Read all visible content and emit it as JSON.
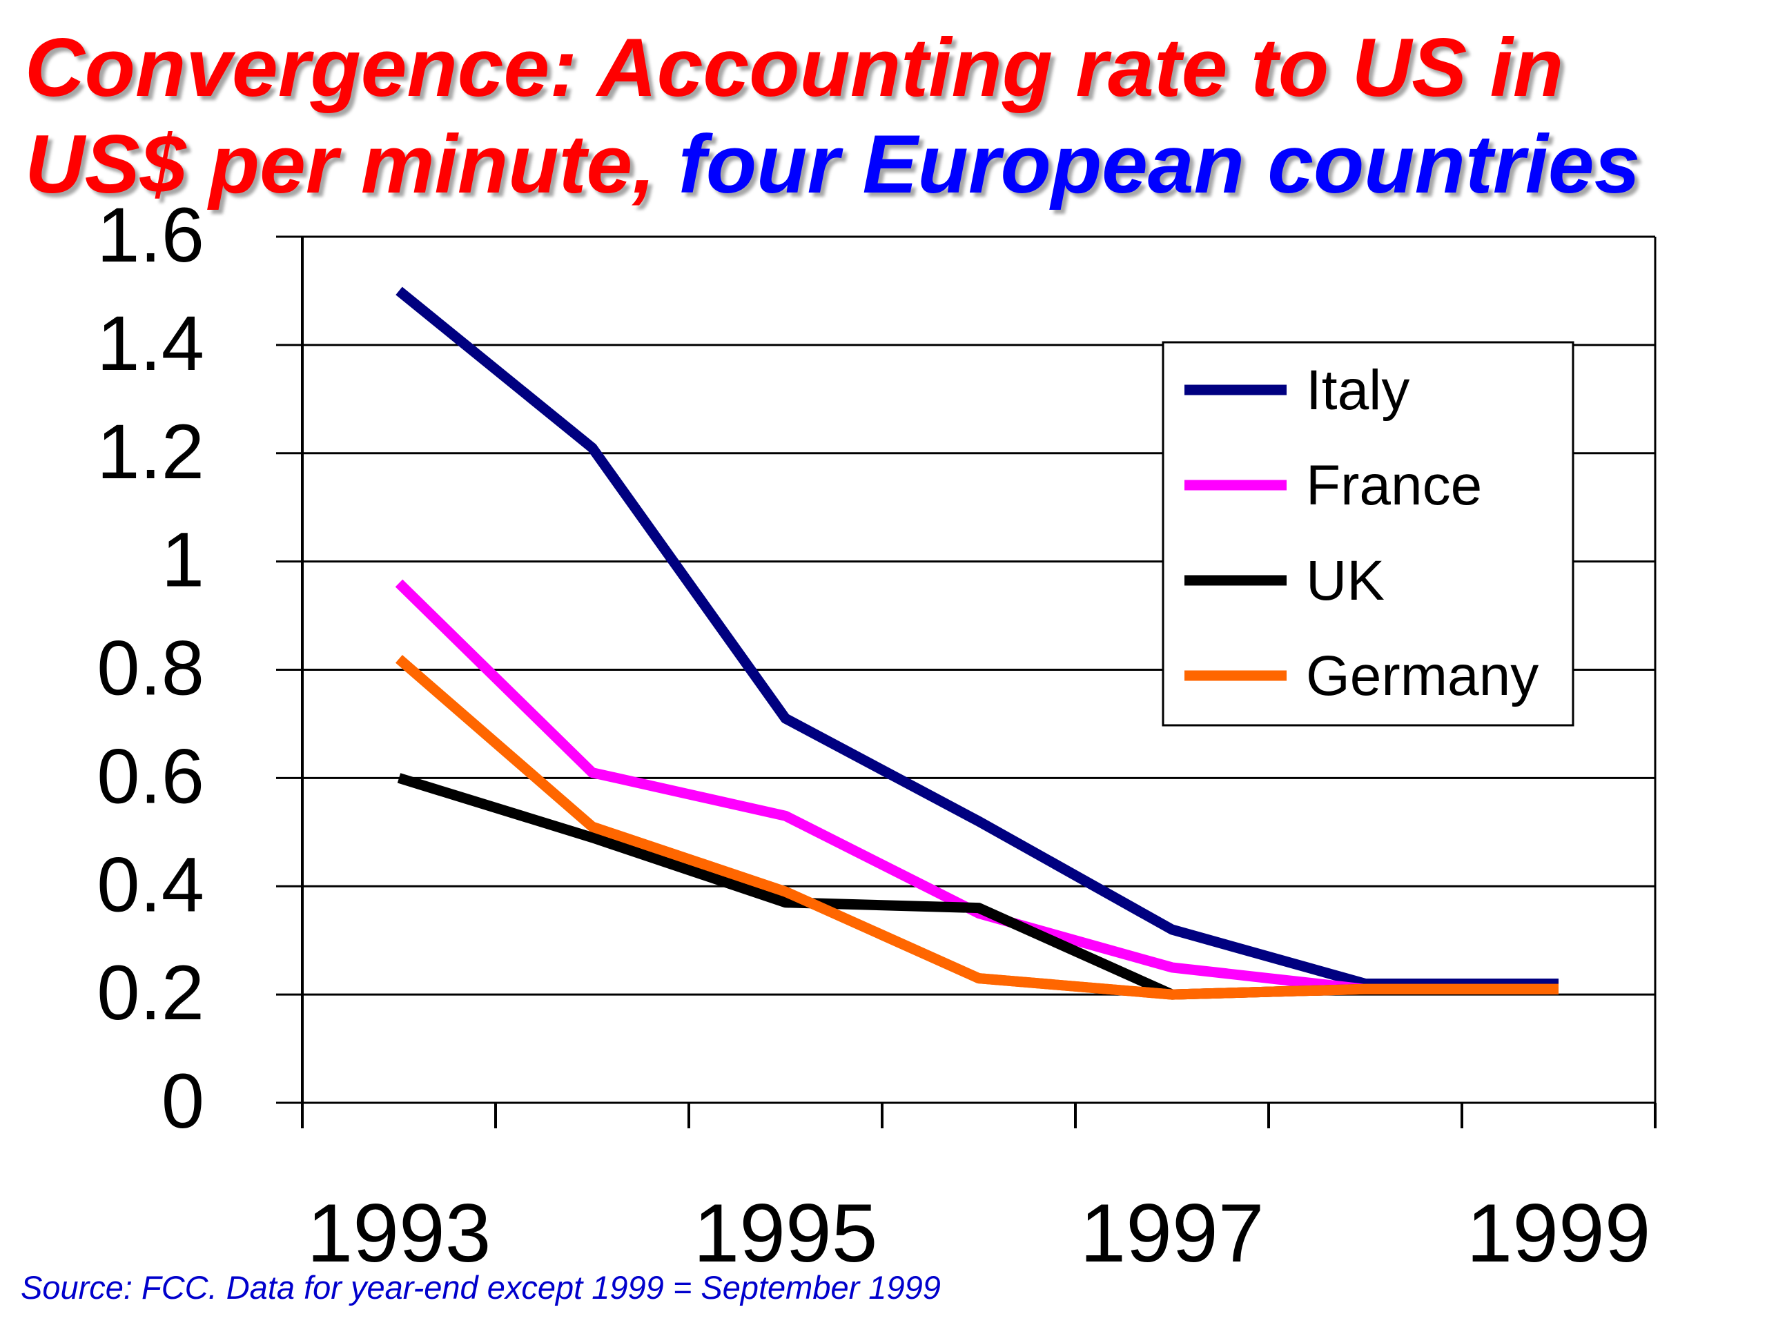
{
  "title": {
    "line1": "Convergence: Accounting rate to US in",
    "line2_part1": "US$ per minute, ",
    "line2_part2": "four European countries"
  },
  "source": "Source:  FCC. Data for year-end except 1999 = September 1999",
  "colors": {
    "title_red": "#ff0000",
    "title_blue": "#0000ff",
    "source_blue": "#0000cc",
    "grid": "#000000"
  },
  "chart_data": {
    "type": "line",
    "title": "Convergence: Accounting rate to US in US$ per minute, four European countries",
    "xlabel": "",
    "ylabel": "",
    "x": [
      1993,
      1994,
      1995,
      1996,
      1997,
      1998,
      1999
    ],
    "x_tick_labels": [
      "1993",
      "1995",
      "1997",
      "1999"
    ],
    "y_tick_labels": [
      "0",
      "0.2",
      "0.4",
      "0.6",
      "0.8",
      "1",
      "1.2",
      "1.4",
      "1.6"
    ],
    "ylim": [
      0,
      1.6
    ],
    "grid": "horizontal",
    "legend_position": "top-right",
    "series": [
      {
        "name": "Italy",
        "color": "#000080",
        "values": [
          1.5,
          1.21,
          0.71,
          0.52,
          0.32,
          0.22,
          0.22
        ]
      },
      {
        "name": "France",
        "color": "#ff00ff",
        "values": [
          0.96,
          0.61,
          0.53,
          0.35,
          0.25,
          0.21,
          0.21
        ]
      },
      {
        "name": "UK",
        "color": "#000000",
        "values": [
          0.6,
          0.49,
          0.37,
          0.36,
          0.2,
          0.21,
          0.21
        ]
      },
      {
        "name": "Germany",
        "color": "#ff6600",
        "values": [
          0.82,
          0.51,
          0.39,
          0.23,
          0.2,
          0.21,
          0.21
        ]
      }
    ]
  }
}
